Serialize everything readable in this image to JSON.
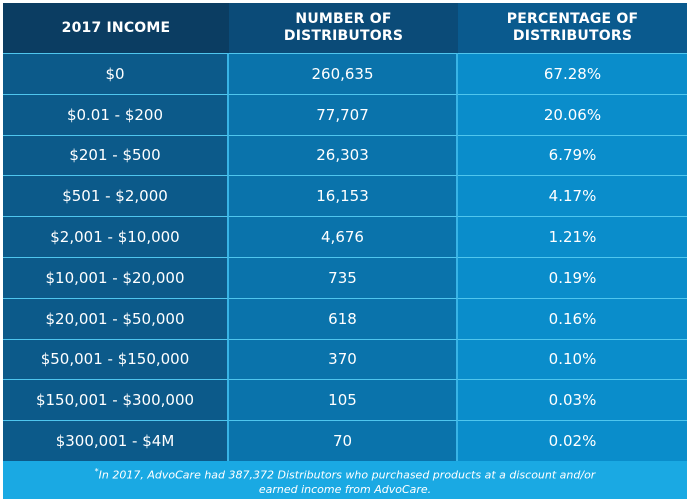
{
  "table": {
    "headers": [
      "2017 INCOME",
      "NUMBER OF DISTRIBUTORS",
      "PERCENTAGE OF DISTRIBUTORS"
    ],
    "rows": [
      {
        "income": "$0",
        "count": "260,635",
        "percent": "67.28%"
      },
      {
        "income": "$0.01 - $200",
        "count": "77,707",
        "percent": "20.06%"
      },
      {
        "income": "$201 - $500",
        "count": "26,303",
        "percent": "6.79%"
      },
      {
        "income": "$501 - $2,000",
        "count": "16,153",
        "percent": "4.17%"
      },
      {
        "income": "$2,001 - $10,000",
        "count": "4,676",
        "percent": "1.21%"
      },
      {
        "income": "$10,001 - $20,000",
        "count": "735",
        "percent": "0.19%"
      },
      {
        "income": "$20,001 - $50,000",
        "count": "618",
        "percent": "0.16%"
      },
      {
        "income": "$50,001 - $150,000",
        "count": "370",
        "percent": "0.10%"
      },
      {
        "income": "$150,001 - $300,000",
        "count": "105",
        "percent": "0.03%"
      },
      {
        "income": "$300,001 - $4M",
        "count": "70",
        "percent": "0.02%"
      }
    ]
  },
  "footnote": {
    "marker": "*",
    "line1": "In 2017, AdvoCare had 387,372 Distributors who purchased products at a discount and/or",
    "line2": "earned income from AdvoCare."
  },
  "colors": {
    "header_dark": "#0b3d62",
    "col1": "#0c5a8a",
    "col2": "#0a73ab",
    "col3": "#0a8dcb",
    "footer": "#1aa9e3"
  }
}
